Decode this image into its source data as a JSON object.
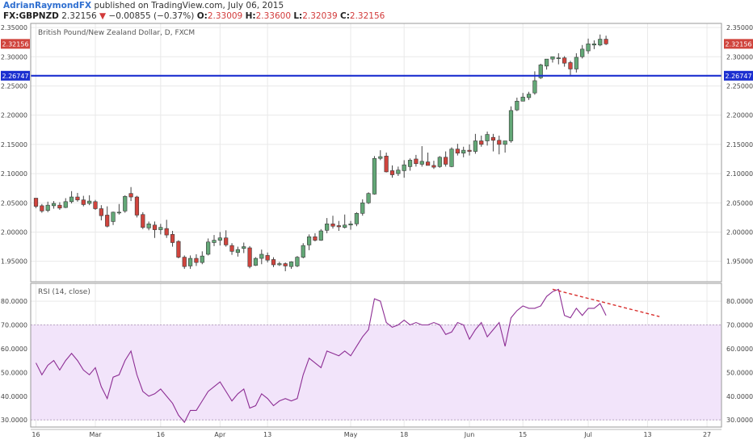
{
  "header": {
    "line1_author": "AdrianRaymondFX",
    "line1_text": "published on TradingView.com, July 06, 2015",
    "symbol": "FX:GBPNZD",
    "last": "2.32156",
    "change_arrow": "▼",
    "change": "−0.00855 (−0.37%)",
    "o_label": "O:",
    "o_val": "2.33009",
    "h_label": "H:",
    "h_val": "2.33600",
    "l_label": "L:",
    "l_val": "2.32039",
    "c_label": "C:",
    "c_val": "2.32156"
  },
  "colors": {
    "up": "#63a877",
    "down": "#d0443d",
    "wick": "#444444",
    "hline": "#1b2fd0",
    "rsi_line": "#8d2e94",
    "rsi_band": "#f2e4fa",
    "trend": "#d9302e",
    "grid": "#e9e9e9"
  },
  "chart_data": [
    {
      "type": "candlestick",
      "title": "British Pound/New Zealand Dollar, D, FXCM",
      "ylim": [
        1.915,
        2.357
      ],
      "y_ticks": [
        "2.35000",
        "2.30000",
        "2.25000",
        "2.20000",
        "2.15000",
        "2.10000",
        "2.05000",
        "2.00000",
        "1.95000"
      ],
      "x_tick_labels": [
        "16",
        "Mar",
        "16",
        "Apr",
        "13",
        "May",
        "18",
        "Jun",
        "15",
        "Jul",
        "13",
        "27"
      ],
      "last_price_label": "2.32156",
      "horizontal_line": {
        "value": 2.26747,
        "label": "2.26747"
      },
      "candles": [
        [
          2.058,
          2.058,
          2.041,
          2.044
        ],
        [
          2.045,
          2.048,
          2.033,
          2.036
        ],
        [
          2.037,
          2.052,
          2.034,
          2.046
        ],
        [
          2.045,
          2.053,
          2.04,
          2.049
        ],
        [
          2.046,
          2.051,
          2.038,
          2.041
        ],
        [
          2.042,
          2.058,
          2.041,
          2.052
        ],
        [
          2.052,
          2.07,
          2.049,
          2.06
        ],
        [
          2.06,
          2.067,
          2.052,
          2.055
        ],
        [
          2.055,
          2.062,
          2.044,
          2.047
        ],
        [
          2.049,
          2.063,
          2.046,
          2.053
        ],
        [
          2.052,
          2.055,
          2.038,
          2.04
        ],
        [
          2.04,
          2.046,
          2.02,
          2.028
        ],
        [
          2.029,
          2.044,
          2.008,
          2.01
        ],
        [
          2.018,
          2.035,
          2.012,
          2.034
        ],
        [
          2.034,
          2.048,
          2.03,
          2.034
        ],
        [
          2.036,
          2.063,
          2.033,
          2.061
        ],
        [
          2.066,
          2.077,
          2.053,
          2.06
        ],
        [
          2.06,
          2.062,
          2.025,
          2.029
        ],
        [
          2.03,
          2.034,
          2.005,
          2.008
        ],
        [
          2.007,
          2.018,
          2.003,
          2.014
        ],
        [
          2.012,
          2.018,
          1.99,
          2.004
        ],
        [
          2.004,
          2.014,
          1.996,
          2.008
        ],
        [
          2.006,
          2.021,
          1.99,
          1.995
        ],
        [
          1.996,
          2.002,
          1.975,
          1.982
        ],
        [
          1.984,
          1.986,
          1.955,
          1.957
        ],
        [
          1.957,
          1.96,
          1.937,
          1.941
        ],
        [
          1.942,
          1.96,
          1.937,
          1.955
        ],
        [
          1.955,
          1.962,
          1.942,
          1.948
        ],
        [
          1.948,
          1.967,
          1.945,
          1.959
        ],
        [
          1.962,
          1.989,
          1.96,
          1.983
        ],
        [
          1.982,
          1.995,
          1.976,
          1.986
        ],
        [
          1.986,
          2.0,
          1.977,
          1.99
        ],
        [
          1.99,
          2.003,
          1.975,
          1.978
        ],
        [
          1.977,
          1.981,
          1.961,
          1.967
        ],
        [
          1.965,
          1.975,
          1.958,
          1.97
        ],
        [
          1.972,
          1.982,
          1.964,
          1.975
        ],
        [
          1.973,
          1.976,
          1.938,
          1.941
        ],
        [
          1.943,
          1.957,
          1.942,
          1.955
        ],
        [
          1.955,
          1.97,
          1.945,
          1.962
        ],
        [
          1.96,
          1.965,
          1.948,
          1.952
        ],
        [
          1.953,
          1.957,
          1.94,
          1.944
        ],
        [
          1.944,
          1.949,
          1.942,
          1.946
        ],
        [
          1.946,
          1.948,
          1.933,
          1.942
        ],
        [
          1.941,
          1.95,
          1.937,
          1.949
        ],
        [
          1.942,
          1.959,
          1.94,
          1.957
        ],
        [
          1.957,
          1.981,
          1.955,
          1.977
        ],
        [
          1.978,
          1.996,
          1.969,
          1.992
        ],
        [
          1.992,
          1.998,
          1.984,
          1.986
        ],
        [
          1.986,
          2.005,
          1.985,
          2.002
        ],
        [
          2.003,
          2.024,
          1.998,
          2.014
        ],
        [
          2.014,
          2.028,
          2.006,
          2.01
        ],
        [
          2.011,
          2.019,
          2.002,
          2.009
        ],
        [
          2.008,
          2.03,
          2.006,
          2.012
        ],
        [
          2.012,
          2.019,
          2.004,
          2.014
        ],
        [
          2.014,
          2.034,
          2.01,
          2.032
        ],
        [
          2.032,
          2.056,
          2.028,
          2.05
        ],
        [
          2.05,
          2.068,
          2.048,
          2.066
        ],
        [
          2.065,
          2.13,
          2.064,
          2.126
        ],
        [
          2.126,
          2.14,
          2.123,
          2.129
        ],
        [
          2.13,
          2.136,
          2.102,
          2.103
        ],
        [
          2.105,
          2.114,
          2.093,
          2.098
        ],
        [
          2.1,
          2.112,
          2.096,
          2.106
        ],
        [
          2.105,
          2.123,
          2.093,
          2.115
        ],
        [
          2.112,
          2.126,
          2.105,
          2.123
        ],
        [
          2.125,
          2.132,
          2.112,
          2.117
        ],
        [
          2.116,
          2.147,
          2.112,
          2.121
        ],
        [
          2.12,
          2.136,
          2.114,
          2.114
        ],
        [
          2.114,
          2.122,
          2.108,
          2.111
        ],
        [
          2.112,
          2.13,
          2.11,
          2.128
        ],
        [
          2.128,
          2.138,
          2.112,
          2.116
        ],
        [
          2.112,
          2.145,
          2.111,
          2.142
        ],
        [
          2.142,
          2.151,
          2.131,
          2.135
        ],
        [
          2.135,
          2.146,
          2.128,
          2.14
        ],
        [
          2.14,
          2.15,
          2.131,
          2.138
        ],
        [
          2.138,
          2.168,
          2.134,
          2.156
        ],
        [
          2.156,
          2.165,
          2.146,
          2.15
        ],
        [
          2.156,
          2.172,
          2.148,
          2.167
        ],
        [
          2.162,
          2.168,
          2.138,
          2.157
        ],
        [
          2.157,
          2.165,
          2.133,
          2.15
        ],
        [
          2.15,
          2.156,
          2.136,
          2.156
        ],
        [
          2.156,
          2.215,
          2.153,
          2.208
        ],
        [
          2.209,
          2.23,
          2.207,
          2.224
        ],
        [
          2.224,
          2.238,
          2.224,
          2.231
        ],
        [
          2.23,
          2.24,
          2.226,
          2.236
        ],
        [
          2.238,
          2.275,
          2.235,
          2.259
        ],
        [
          2.264,
          2.288,
          2.262,
          2.286
        ],
        [
          2.284,
          2.295,
          2.278,
          2.296
        ],
        [
          2.296,
          2.3,
          2.29,
          2.3
        ],
        [
          2.298,
          2.306,
          2.287,
          2.298
        ],
        [
          2.298,
          2.301,
          2.283,
          2.289
        ],
        [
          2.29,
          2.293,
          2.268,
          2.279
        ],
        [
          2.279,
          2.306,
          2.273,
          2.299
        ],
        [
          2.3,
          2.32,
          2.297,
          2.313
        ],
        [
          2.31,
          2.331,
          2.305,
          2.322
        ],
        [
          2.32,
          2.328,
          2.313,
          2.322
        ],
        [
          2.32,
          2.338,
          2.318,
          2.33
        ],
        [
          2.33,
          2.336,
          2.32,
          2.322
        ]
      ],
      "rsi": {
        "title": "RSI (14, close)",
        "ylim": [
          27,
          87.5
        ],
        "band": [
          30,
          70
        ],
        "y_ticks": [
          "80.0000",
          "70.0000",
          "60.0000",
          "50.0000",
          "40.0000",
          "30.0000"
        ],
        "values": [
          54,
          49,
          53,
          55,
          51,
          55,
          58,
          55,
          51,
          49,
          52,
          44,
          39,
          48,
          49,
          55,
          59,
          49,
          42,
          40,
          41,
          43,
          40,
          37,
          32,
          29,
          34,
          34,
          38,
          42,
          44,
          46,
          42,
          38,
          41,
          43,
          35,
          36,
          41,
          39,
          36,
          38,
          39,
          38,
          39,
          49,
          56,
          54,
          52,
          59,
          58,
          57,
          59,
          57,
          61,
          65,
          68,
          81,
          80,
          71,
          69,
          70,
          72,
          70,
          71,
          70,
          70,
          71,
          70,
          66,
          67,
          71,
          70,
          64,
          68,
          71,
          65,
          68,
          71,
          61,
          73,
          76,
          78,
          77,
          77,
          78,
          82,
          84,
          85,
          74,
          73,
          77,
          74,
          77,
          77,
          79,
          74
        ],
        "trendline": {
          "from": [
            87,
            85
          ],
          "to": [
            105,
            73.5
          ]
        }
      }
    }
  ]
}
